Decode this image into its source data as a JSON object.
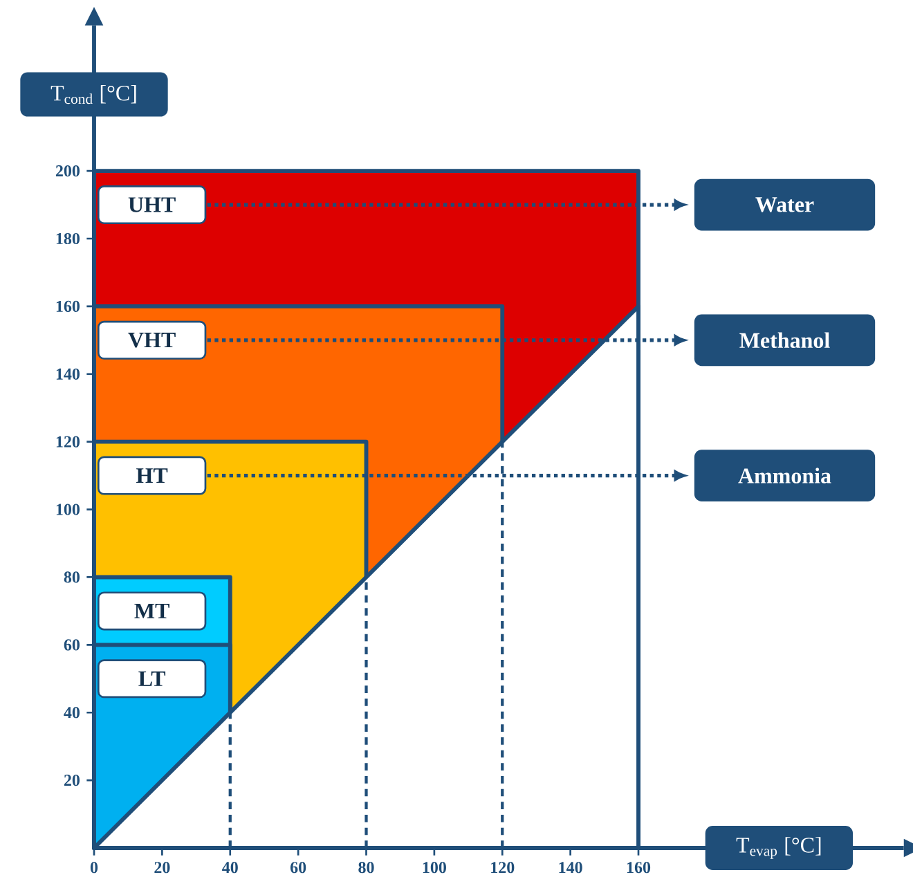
{
  "chart_data": {
    "type": "area",
    "xlabel": "T$_{evap}$ [°C]",
    "ylabel": "T$_{cond}$ [°C]",
    "xlim": [
      0,
      238
    ],
    "ylim": [
      0,
      243
    ],
    "xticks": [
      0,
      20,
      40,
      60,
      80,
      100,
      120,
      140,
      160
    ],
    "yticks": [
      20,
      40,
      60,
      80,
      100,
      120,
      140,
      160,
      180,
      200
    ],
    "series": [
      {
        "name": "UHT",
        "color": "#dd0000",
        "x": [
          0,
          160
        ],
        "values": [
          200,
          200
        ]
      },
      {
        "name": "VHT",
        "color": "#ff6600",
        "x": [
          0,
          120
        ],
        "values": [
          160,
          160
        ]
      },
      {
        "name": "HT",
        "color": "#ffc000",
        "x": [
          0,
          80
        ],
        "values": [
          120,
          120
        ]
      },
      {
        "name": "MT",
        "color": "#00ccff",
        "x": [
          0,
          40
        ],
        "values": [
          80,
          80
        ]
      },
      {
        "name": "LT",
        "color": "#00b0f0",
        "x": [
          0,
          40
        ],
        "values": [
          60,
          60
        ]
      },
      {
        "color": "#ffffff",
        "x": [
          0,
          160
        ],
        "values": [
          0,
          160
        ]
      }
    ],
    "ref_lines": [
      {
        "axis": "x",
        "value": 40,
        "line_style": "dashed"
      },
      {
        "axis": "x",
        "value": 80,
        "line_style": "dashed"
      },
      {
        "axis": "x",
        "value": 120,
        "line_style": "dashed"
      }
    ],
    "annotations": [
      "Water",
      "Methanol",
      "Ammonia"
    ]
  }
}
